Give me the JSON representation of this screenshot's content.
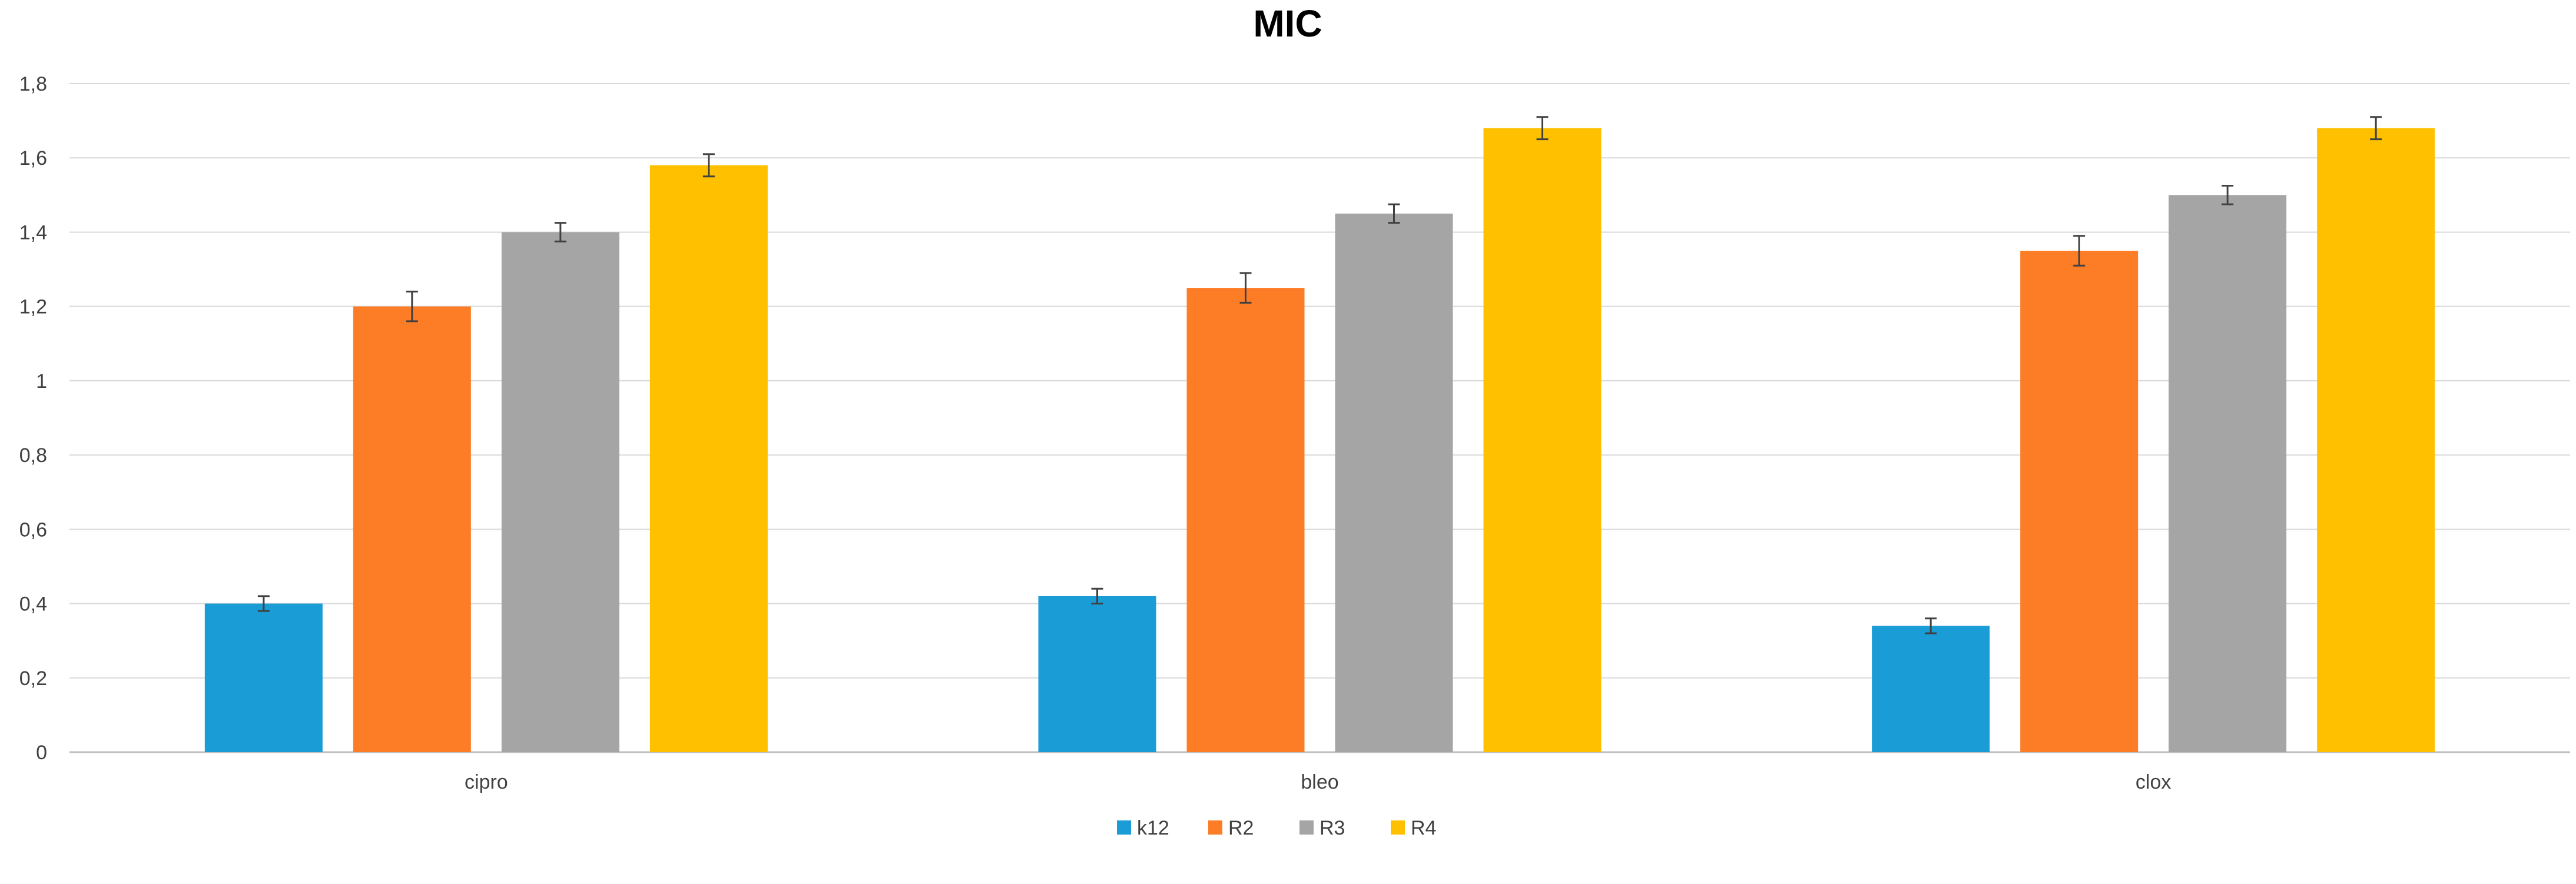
{
  "chart_data": {
    "type": "bar",
    "title": "MIC",
    "xlabel": "",
    "ylabel": "",
    "categories": [
      "cipro",
      "bleo",
      "clox"
    ],
    "ylim": [
      0,
      1.8
    ],
    "y_ticks": [
      "0",
      "0,2",
      "0,4",
      "0,6",
      "0,8",
      "1",
      "1,2",
      "1,4",
      "1,6",
      "1,8"
    ],
    "grid": true,
    "legend_position": "bottom",
    "series": [
      {
        "name": "k12",
        "color": "#1a9cd6",
        "values": [
          0.4,
          0.42,
          0.34
        ],
        "errors": [
          0.02,
          0.02,
          0.02
        ]
      },
      {
        "name": "R2",
        "color": "#fd7d27",
        "values": [
          1.2,
          1.25,
          1.35
        ],
        "errors": [
          0.04,
          0.04,
          0.04
        ]
      },
      {
        "name": "R3",
        "color": "#a5a5a5",
        "values": [
          1.4,
          1.45,
          1.5
        ],
        "errors": [
          0.025,
          0.025,
          0.025
        ]
      },
      {
        "name": "R4",
        "color": "#ffc000",
        "values": [
          1.58,
          1.68,
          1.68
        ],
        "errors": [
          0.03,
          0.03,
          0.03
        ]
      }
    ]
  }
}
